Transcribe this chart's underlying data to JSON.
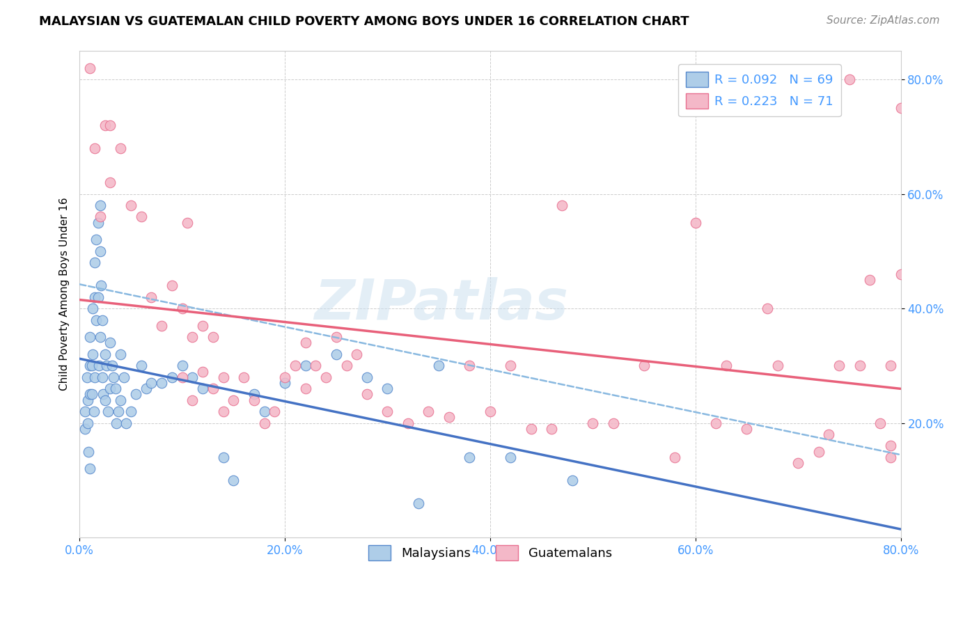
{
  "title": "MALAYSIAN VS GUATEMALAN CHILD POVERTY AMONG BOYS UNDER 16 CORRELATION CHART",
  "source": "Source: ZipAtlas.com",
  "ylabel": "Child Poverty Among Boys Under 16",
  "xlim": [
    0.0,
    0.8
  ],
  "ylim": [
    0.0,
    0.85
  ],
  "xticks": [
    0.0,
    0.2,
    0.4,
    0.6,
    0.8
  ],
  "yticks_right": [
    0.2,
    0.4,
    0.6,
    0.8
  ],
  "malaysian_color": "#aecde8",
  "guatemalan_color": "#f4b8c8",
  "malaysian_edge_color": "#5588cc",
  "guatemalan_edge_color": "#e87090",
  "malaysian_line_color": "#4472c4",
  "guatemalan_line_color": "#e8607a",
  "dashed_line_color": "#88b8e0",
  "watermark_color": "#cce0f0",
  "background_color": "#ffffff",
  "grid_color": "#cccccc",
  "malaysian_R": 0.092,
  "malaysian_N": 69,
  "guatemalan_R": 0.223,
  "guatemalan_N": 71,
  "tick_color": "#4499ff",
  "title_fontsize": 13,
  "axis_label_fontsize": 11,
  "tick_fontsize": 12,
  "legend_fontsize": 13,
  "malaysian_x": [
    0.005,
    0.005,
    0.007,
    0.008,
    0.008,
    0.009,
    0.01,
    0.01,
    0.01,
    0.01,
    0.012,
    0.012,
    0.013,
    0.013,
    0.014,
    0.015,
    0.015,
    0.015,
    0.016,
    0.016,
    0.018,
    0.018,
    0.019,
    0.02,
    0.02,
    0.02,
    0.021,
    0.022,
    0.022,
    0.023,
    0.025,
    0.025,
    0.026,
    0.028,
    0.03,
    0.03,
    0.032,
    0.033,
    0.035,
    0.036,
    0.038,
    0.04,
    0.04,
    0.043,
    0.045,
    0.05,
    0.055,
    0.06,
    0.065,
    0.07,
    0.08,
    0.09,
    0.1,
    0.11,
    0.12,
    0.14,
    0.15,
    0.17,
    0.18,
    0.2,
    0.22,
    0.25,
    0.28,
    0.3,
    0.33,
    0.35,
    0.38,
    0.42,
    0.48
  ],
  "malaysian_y": [
    0.22,
    0.19,
    0.28,
    0.24,
    0.2,
    0.15,
    0.35,
    0.3,
    0.25,
    0.12,
    0.3,
    0.25,
    0.4,
    0.32,
    0.22,
    0.48,
    0.42,
    0.28,
    0.52,
    0.38,
    0.55,
    0.42,
    0.3,
    0.58,
    0.5,
    0.35,
    0.44,
    0.38,
    0.28,
    0.25,
    0.32,
    0.24,
    0.3,
    0.22,
    0.34,
    0.26,
    0.3,
    0.28,
    0.26,
    0.2,
    0.22,
    0.32,
    0.24,
    0.28,
    0.2,
    0.22,
    0.25,
    0.3,
    0.26,
    0.27,
    0.27,
    0.28,
    0.3,
    0.28,
    0.26,
    0.14,
    0.1,
    0.25,
    0.22,
    0.27,
    0.3,
    0.32,
    0.28,
    0.26,
    0.06,
    0.3,
    0.14,
    0.14,
    0.1
  ],
  "guatemalan_x": [
    0.01,
    0.015,
    0.02,
    0.025,
    0.03,
    0.03,
    0.04,
    0.05,
    0.06,
    0.07,
    0.08,
    0.09,
    0.1,
    0.1,
    0.105,
    0.11,
    0.11,
    0.12,
    0.12,
    0.13,
    0.13,
    0.14,
    0.14,
    0.15,
    0.16,
    0.17,
    0.18,
    0.19,
    0.2,
    0.21,
    0.22,
    0.22,
    0.23,
    0.24,
    0.25,
    0.26,
    0.27,
    0.28,
    0.3,
    0.32,
    0.34,
    0.36,
    0.38,
    0.4,
    0.42,
    0.44,
    0.46,
    0.47,
    0.5,
    0.52,
    0.55,
    0.58,
    0.6,
    0.62,
    0.63,
    0.65,
    0.67,
    0.68,
    0.7,
    0.72,
    0.73,
    0.74,
    0.75,
    0.76,
    0.77,
    0.78,
    0.79,
    0.79,
    0.79,
    0.8,
    0.8
  ],
  "guatemalan_y": [
    0.82,
    0.68,
    0.56,
    0.72,
    0.72,
    0.62,
    0.68,
    0.58,
    0.56,
    0.42,
    0.37,
    0.44,
    0.4,
    0.28,
    0.55,
    0.35,
    0.24,
    0.37,
    0.29,
    0.35,
    0.26,
    0.28,
    0.22,
    0.24,
    0.28,
    0.24,
    0.2,
    0.22,
    0.28,
    0.3,
    0.34,
    0.26,
    0.3,
    0.28,
    0.35,
    0.3,
    0.32,
    0.25,
    0.22,
    0.2,
    0.22,
    0.21,
    0.3,
    0.22,
    0.3,
    0.19,
    0.19,
    0.58,
    0.2,
    0.2,
    0.3,
    0.14,
    0.55,
    0.2,
    0.3,
    0.19,
    0.4,
    0.3,
    0.13,
    0.15,
    0.18,
    0.3,
    0.8,
    0.3,
    0.45,
    0.2,
    0.16,
    0.14,
    0.3,
    0.46,
    0.75
  ]
}
